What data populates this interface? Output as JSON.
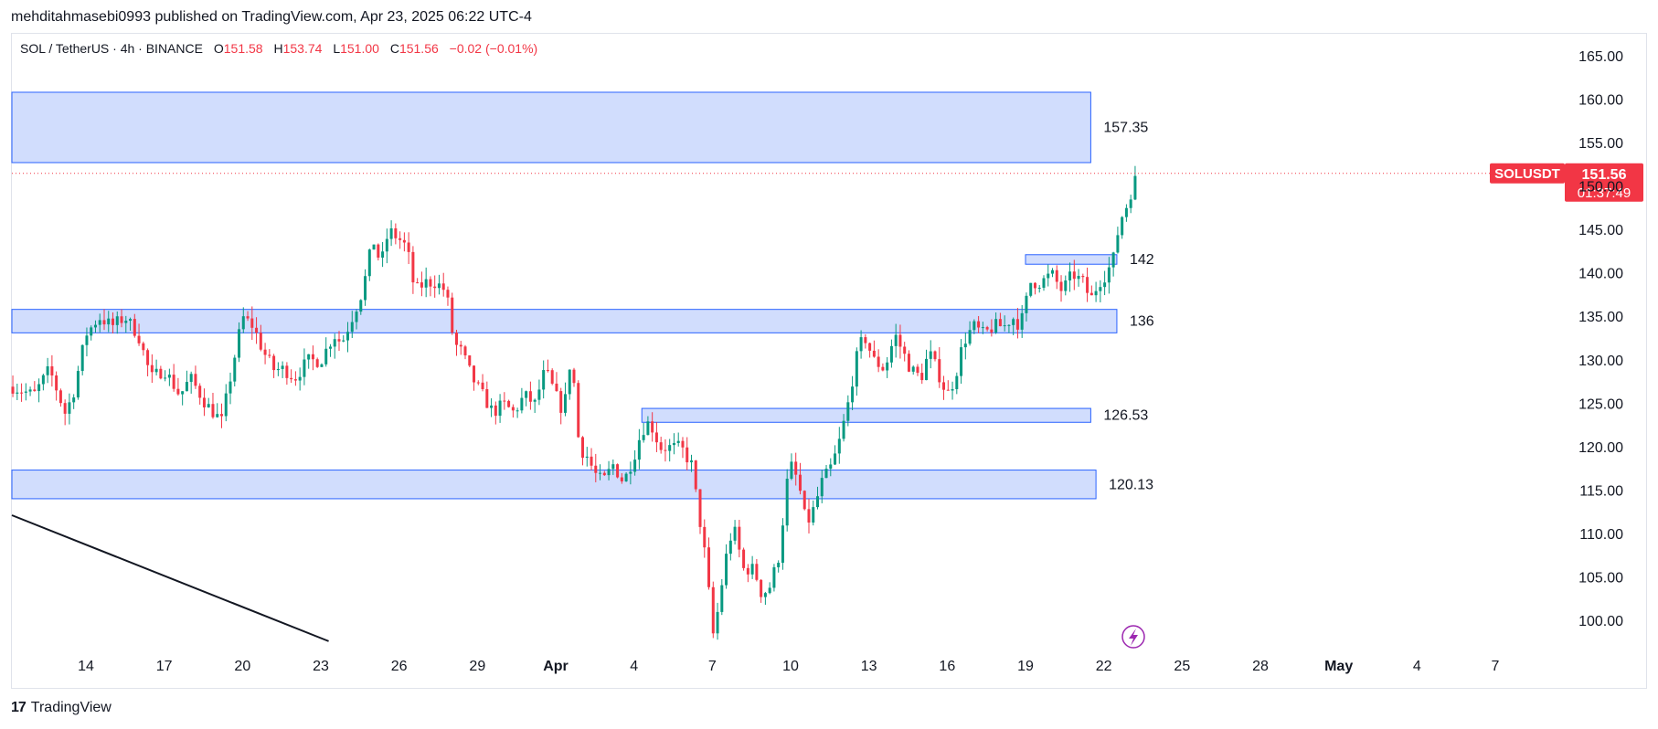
{
  "header": {
    "published_line": "mehditahmasebi0993 published on TradingView.com, Apr 23, 2025 06:22 UTC-4"
  },
  "legend": {
    "symbol": "SOL / TetherUS · 4h · BINANCE",
    "open_label": "O",
    "open": "151.58",
    "high_label": "H",
    "high": "153.74",
    "low_label": "L",
    "low": "151.00",
    "close_label": "C",
    "close": "151.56",
    "change": "−0.02 (−0.01%)"
  },
  "footer": {
    "brand": "TradingView"
  },
  "colors": {
    "up": "#089981",
    "down": "#f23645",
    "zone_fill": "#d1ddfd",
    "zone_border": "#2962ff",
    "last_price": "#f23645",
    "text": "#131722"
  },
  "chart_data": {
    "type": "candlestick",
    "symbol": "SOLUSDT",
    "ylim": [
      96,
      168
    ],
    "y_ticks": [
      165,
      160,
      155,
      150,
      145,
      140,
      135,
      130,
      125,
      120,
      115,
      110,
      105,
      100
    ],
    "y_tick_labels": [
      "165.00",
      "160.00",
      "155.00",
      "150.00",
      "145.00",
      "140.00",
      "135.00",
      "130.00",
      "125.00",
      "120.00",
      "115.00",
      "110.00",
      "105.00",
      "100.00"
    ],
    "x_domain_days": [
      11.1,
      39.8
    ],
    "x_ticks": [
      {
        "day": 14,
        "label": "14"
      },
      {
        "day": 17,
        "label": "17"
      },
      {
        "day": 20,
        "label": "20"
      },
      {
        "day": 23,
        "label": "23"
      },
      {
        "day": 26,
        "label": "26"
      },
      {
        "day": 29,
        "label": "29"
      },
      {
        "day": 32,
        "label": "Apr"
      },
      {
        "day": 35,
        "label": "4"
      },
      {
        "day": 38,
        "label": "7"
      },
      {
        "day": 41,
        "label": "10"
      },
      {
        "day": 44,
        "label": "13"
      },
      {
        "day": 47,
        "label": "16"
      },
      {
        "day": 50,
        "label": "19"
      },
      {
        "day": 53,
        "label": "22"
      },
      {
        "day": 56,
        "label": "25"
      },
      {
        "day": 59,
        "label": "28"
      },
      {
        "day": 62,
        "label": "May"
      },
      {
        "day": 65,
        "label": "4"
      },
      {
        "day": 68,
        "label": "7"
      }
    ],
    "last_price": {
      "label": "SOLUSDT",
      "value": 151.56,
      "value_label": "151.56",
      "countdown": "01:37:49"
    },
    "zones": [
      {
        "label": "157.35",
        "top": 160.9,
        "bottom": 152.8,
        "day_from": 11.1,
        "day_to": 52.5
      },
      {
        "label": "142",
        "top": 142.2,
        "bottom": 141.1,
        "day_from": 50.0,
        "day_to": 53.5
      },
      {
        "label": "136",
        "top": 135.9,
        "bottom": 133.2,
        "day_from": 11.1,
        "day_to": 53.5
      },
      {
        "label": "126.53",
        "top": 124.5,
        "bottom": 122.9,
        "day_from": 35.3,
        "day_to": 52.5
      },
      {
        "label": "120.13",
        "top": 117.4,
        "bottom": 114.1,
        "day_from": 11.1,
        "day_to": 52.7
      }
    ],
    "trendline": {
      "from": {
        "day": 11.1,
        "value": 112.2
      },
      "to": {
        "day": 23.3,
        "value": 97.7
      }
    },
    "price_path": [
      [
        11.2,
        127
      ],
      [
        12,
        126
      ],
      [
        12.6,
        129
      ],
      [
        13.2,
        124
      ],
      [
        13.5,
        126
      ],
      [
        14,
        133
      ],
      [
        14.5,
        135
      ],
      [
        15,
        134
      ],
      [
        15.5,
        135
      ],
      [
        16,
        133
      ],
      [
        16.5,
        128
      ],
      [
        17,
        129
      ],
      [
        17.6,
        126
      ],
      [
        18,
        128
      ],
      [
        18.6,
        125
      ],
      [
        19.2,
        123
      ],
      [
        19.6,
        129
      ],
      [
        20,
        135
      ],
      [
        20.4,
        134
      ],
      [
        20.8,
        131
      ],
      [
        21.2,
        129
      ],
      [
        21.6,
        129
      ],
      [
        22,
        128
      ],
      [
        22.5,
        130
      ],
      [
        23,
        130
      ],
      [
        23.5,
        133
      ],
      [
        23.8,
        132
      ],
      [
        24.2,
        135
      ],
      [
        24.6,
        138
      ],
      [
        25,
        144
      ],
      [
        25.3,
        141
      ],
      [
        25.6,
        145
      ],
      [
        26,
        144
      ],
      [
        26.3,
        143
      ],
      [
        26.6,
        138
      ],
      [
        27,
        139
      ],
      [
        27.4,
        139
      ],
      [
        27.8,
        138
      ],
      [
        28.1,
        132
      ],
      [
        28.4,
        131
      ],
      [
        28.8,
        128
      ],
      [
        29.2,
        126
      ],
      [
        29.6,
        124
      ],
      [
        30,
        125
      ],
      [
        30.4,
        124
      ],
      [
        30.8,
        126
      ],
      [
        31.2,
        125
      ],
      [
        31.6,
        129
      ],
      [
        32,
        126
      ],
      [
        32.3,
        124
      ],
      [
        32.6,
        131
      ],
      [
        32.9,
        120
      ],
      [
        33.2,
        119
      ],
      [
        33.5,
        117
      ],
      [
        33.8,
        116
      ],
      [
        34.2,
        118
      ],
      [
        34.6,
        116
      ],
      [
        35,
        119
      ],
      [
        35.3,
        122
      ],
      [
        35.6,
        123
      ],
      [
        36,
        120
      ],
      [
        36.5,
        120
      ],
      [
        36.8,
        120
      ],
      [
        37.2,
        118
      ],
      [
        37.5,
        112
      ],
      [
        37.8,
        106
      ],
      [
        38,
        98
      ],
      [
        38.2,
        101
      ],
      [
        38.5,
        107
      ],
      [
        38.8,
        111
      ],
      [
        39.2,
        106
      ],
      [
        39.6,
        106
      ],
      [
        39.9,
        103
      ],
      [
        40.2,
        104
      ],
      [
        40.6,
        108
      ],
      [
        40.8,
        115
      ],
      [
        41,
        118
      ],
      [
        41.3,
        116
      ],
      [
        41.6,
        111
      ],
      [
        41.9,
        113
      ],
      [
        42.2,
        116
      ],
      [
        42.6,
        118
      ],
      [
        42.9,
        121
      ],
      [
        43.2,
        125
      ],
      [
        43.5,
        130
      ],
      [
        43.8,
        133
      ],
      [
        44.2,
        130
      ],
      [
        44.6,
        129
      ],
      [
        45,
        133
      ],
      [
        45.3,
        131
      ],
      [
        45.6,
        129
      ],
      [
        46,
        128
      ],
      [
        46.3,
        131
      ],
      [
        46.6,
        129
      ],
      [
        47,
        126
      ],
      [
        47.3,
        128
      ],
      [
        47.6,
        132
      ],
      [
        48,
        134
      ],
      [
        48.4,
        133
      ],
      [
        48.8,
        134
      ],
      [
        49.2,
        134
      ],
      [
        49.5,
        135
      ],
      [
        49.8,
        134
      ],
      [
        50.2,
        139
      ],
      [
        50.6,
        139
      ],
      [
        51,
        140
      ],
      [
        51.4,
        138
      ],
      [
        51.8,
        140
      ],
      [
        52.2,
        139
      ],
      [
        52.5,
        137
      ],
      [
        52.8,
        139
      ],
      [
        53.1,
        140
      ],
      [
        53.4,
        142
      ],
      [
        53.6,
        146
      ],
      [
        53.9,
        148
      ],
      [
        54.1,
        150
      ],
      [
        54.3,
        151.56
      ]
    ]
  }
}
